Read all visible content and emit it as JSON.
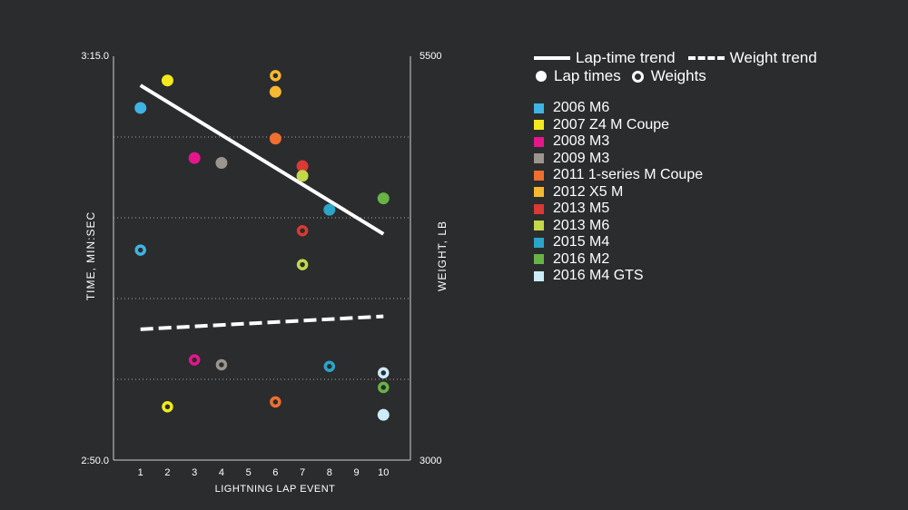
{
  "chart_data": {
    "type": "scatter",
    "xlabel": "LIGHTNING LAP EVENT",
    "ylabel_left": "TIME, MIN:SEC",
    "ylabel_right": "WEIGHT, LB",
    "x_ticks": [
      "1",
      "2",
      "3",
      "4",
      "5",
      "6",
      "7",
      "8",
      "9",
      "10"
    ],
    "xlim": [
      0,
      11
    ],
    "y_left_ticks": [
      "3:15.0",
      "2:50.0"
    ],
    "y_left_range_sec": [
      170,
      195
    ],
    "y_right_ticks": [
      "5500",
      "3000"
    ],
    "y_right_range_lb": [
      3000,
      5500
    ],
    "legend": {
      "lap_trend": "Lap-time trend",
      "weight_trend": "Weight trend",
      "lap_times": "Lap times",
      "weights": "Weights"
    },
    "series": [
      {
        "name": "2006 M6",
        "color": "#3fb4e3",
        "lap": [
          1,
          191.8
        ],
        "weight": [
          1,
          4300
        ]
      },
      {
        "name": "2007 Z4 M Coupe",
        "color": "#f2ea1c",
        "lap": [
          2,
          193.5
        ],
        "weight": [
          2,
          3330
        ]
      },
      {
        "name": "2008 M3",
        "color": "#e5168c",
        "lap": [
          3,
          188.7
        ],
        "weight": [
          3,
          3620
        ]
      },
      {
        "name": "2009 M3",
        "color": "#9b958d",
        "lap": [
          4,
          188.4
        ],
        "weight": [
          4,
          3590
        ]
      },
      {
        "name": "2011 1-series M Coupe",
        "color": "#ee6f30",
        "lap": [
          6,
          189.9
        ],
        "weight": [
          6,
          3360
        ]
      },
      {
        "name": "2012 X5 M",
        "color": "#f6b830",
        "lap": [
          6,
          192.8
        ],
        "weight": [
          6,
          5380
        ]
      },
      {
        "name": "2013 M5",
        "color": "#d93a33",
        "lap": [
          7,
          188.2
        ],
        "weight": [
          7,
          4420
        ]
      },
      {
        "name": "2013 M6",
        "color": "#c3d84a",
        "lap": [
          7,
          187.6
        ],
        "weight": [
          7,
          4210
        ]
      },
      {
        "name": "2015 M4",
        "color": "#2ba5c8",
        "lap": [
          8,
          185.5
        ],
        "weight": [
          8,
          3580
        ]
      },
      {
        "name": "2016 M2",
        "color": "#67b346",
        "lap": [
          10,
          186.2
        ],
        "weight": [
          10,
          3450
        ]
      },
      {
        "name": "2016 M4 GTS",
        "color": "#cdecfa",
        "lap": [
          10,
          172.8
        ],
        "weight": [
          10,
          3540
        ]
      }
    ],
    "trend_lines": {
      "lap_time": {
        "x": [
          1,
          10
        ],
        "y": [
          193.2,
          184.0
        ]
      },
      "weight": {
        "x": [
          1,
          10
        ],
        "y": [
          3810,
          3890
        ]
      }
    }
  }
}
